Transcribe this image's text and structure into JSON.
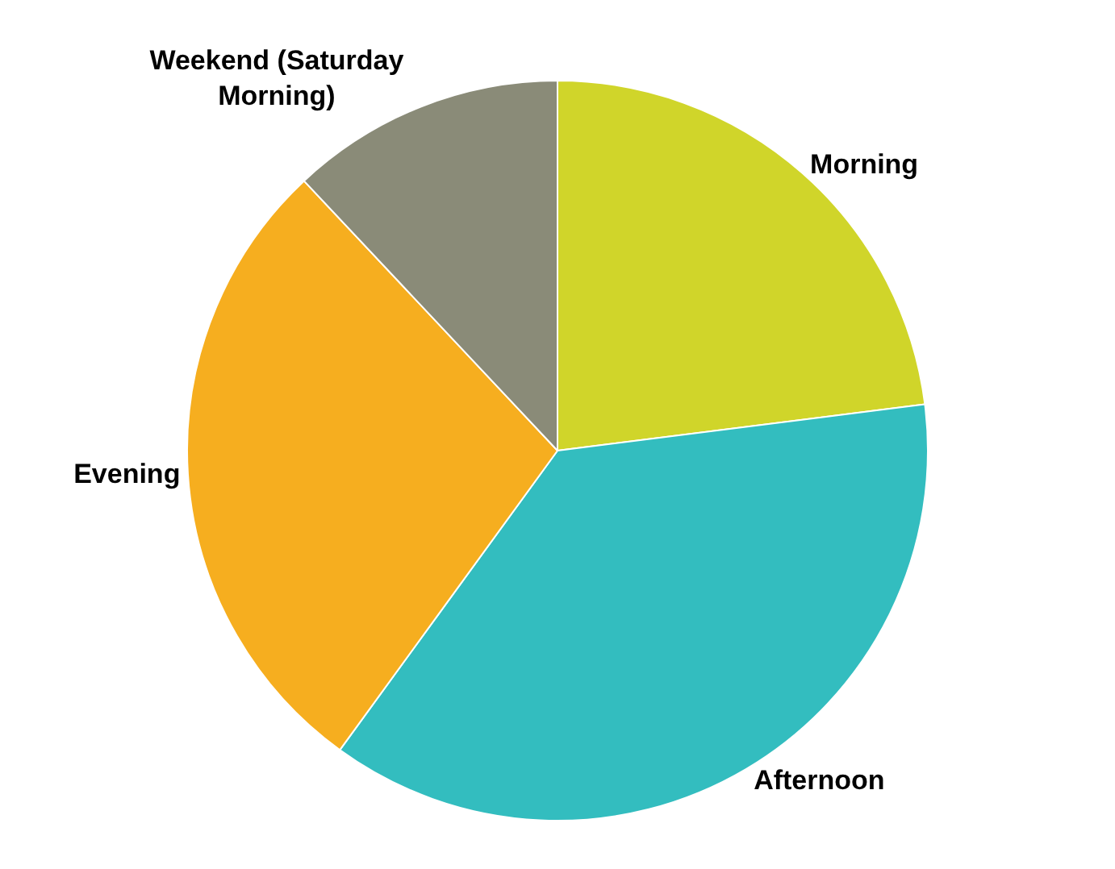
{
  "chart_data": {
    "type": "pie",
    "categories": [
      "Morning",
      "Afternoon",
      "Evening",
      "Weekend (Saturday Morning)"
    ],
    "values": [
      23,
      37,
      28,
      12
    ],
    "colors": [
      "#d0d52a",
      "#33bdbf",
      "#f6ae1f",
      "#8a8b78"
    ],
    "legend": false
  }
}
